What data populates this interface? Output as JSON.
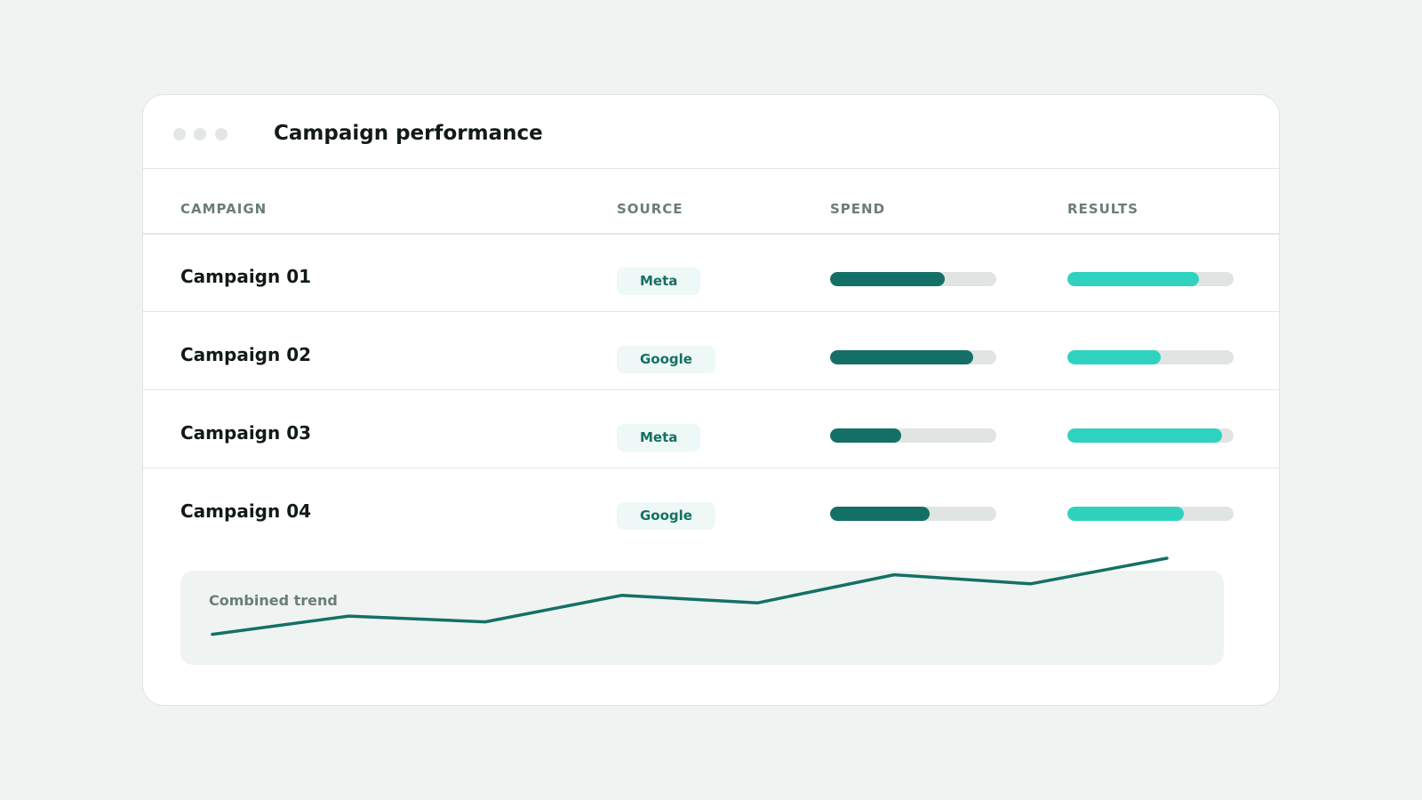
{
  "window": {
    "title": "Campaign performance"
  },
  "table": {
    "headers": {
      "campaign": "CAMPAIGN",
      "source": "SOURCE",
      "spend": "SPEND",
      "results": "RESULTS"
    },
    "rows": [
      {
        "campaign": "Campaign 01",
        "source": "Meta",
        "spend": 0.69,
        "results": 0.79
      },
      {
        "campaign": "Campaign 02",
        "source": "Google",
        "spend": 0.86,
        "results": 0.56
      },
      {
        "campaign": "Campaign 03",
        "source": "Meta",
        "spend": 0.43,
        "results": 0.93
      },
      {
        "campaign": "Campaign 04",
        "source": "Google",
        "spend": 0.6,
        "results": 0.7
      }
    ]
  },
  "trend": {
    "label": "Combined trend",
    "values": [
      8,
      30,
      23,
      55,
      46,
      80,
      69,
      100
    ]
  },
  "colors": {
    "spend_fill": "#147066",
    "results_fill": "#2fd2bf",
    "trend_line": "#147066",
    "badge_text": "#167063"
  }
}
